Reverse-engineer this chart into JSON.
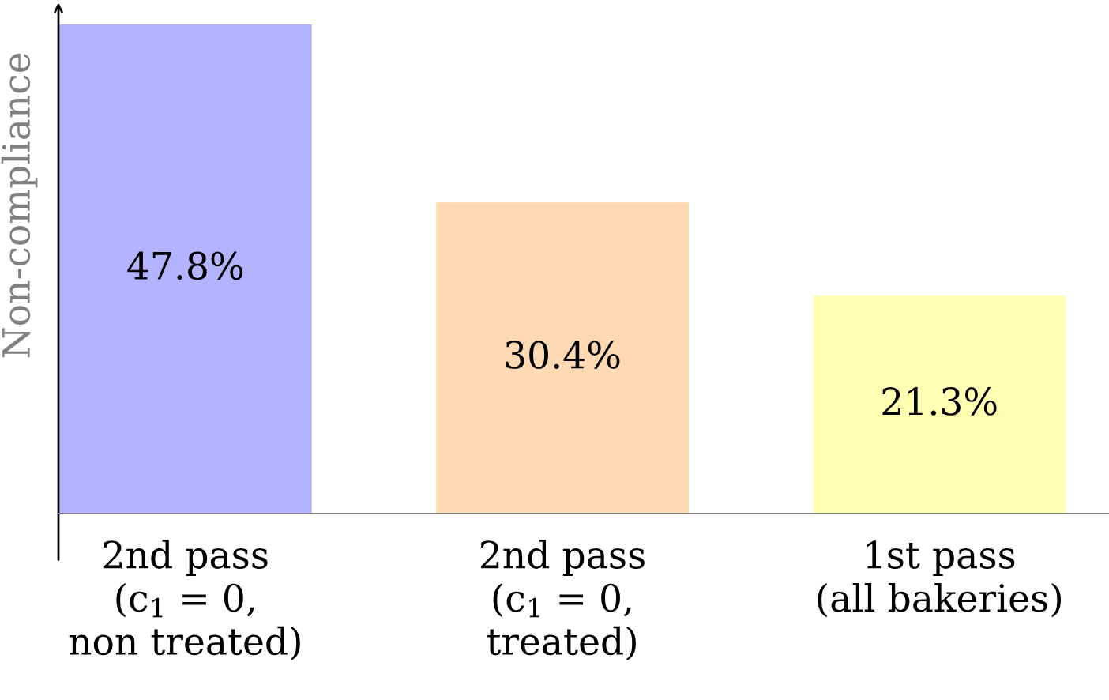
{
  "chart_data": {
    "type": "bar",
    "ylabel": "Non-compliance",
    "categories": [
      "2nd pass\n(c$_{1}$ = 0,\nnon treated)",
      "2nd pass\n(c$_{1}$ = 0,\ntreated)",
      "1st pass\n(all bakeries)"
    ],
    "values": [
      47.8,
      30.4,
      21.3
    ],
    "colors": [
      "#b3b3ff",
      "#ffd9b3",
      "#ffffb3"
    ],
    "value_labels": [
      "47.8%",
      "30.4%",
      "21.3%"
    ],
    "tick_labels": "x",
    "grid": false,
    "legend": false
  }
}
